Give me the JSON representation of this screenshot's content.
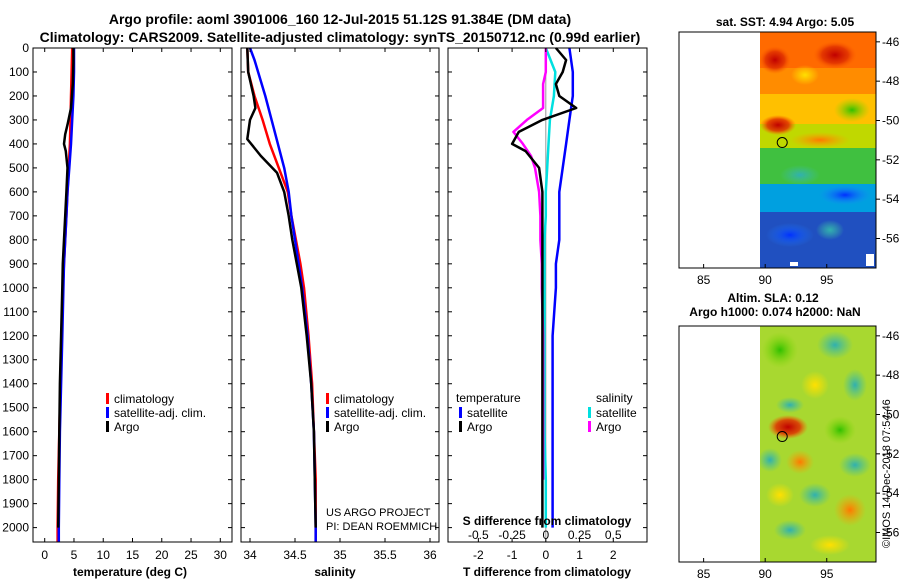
{
  "title": {
    "line1": "Argo profile: aoml 3901006_160 12-Jul-2015 51.12S 91.384E (DM data)",
    "line2": "Climatology: CARS2009. Satellite-adjusted climatology: synTS_20150712.nc (0.99d earlier)"
  },
  "colors": {
    "climatology": "#ff0000",
    "satellite": "#0000ff",
    "argo": "#000000",
    "satellite_salinity": "#00e0e0",
    "argo_salinity": "#ff00ff"
  },
  "depth_ticks": [
    "0",
    "100",
    "200",
    "300",
    "400",
    "500",
    "600",
    "700",
    "800",
    "900",
    "1000",
    "1100",
    "1200",
    "1300",
    "1400",
    "1500",
    "1600",
    "1700",
    "1800",
    "1900",
    "2000"
  ],
  "credits": {
    "project": "US ARGO PROJECT",
    "pi": "PI: DEAN ROEMMICH",
    "imos": "©IMOS 14-Dec-2018 07:54:46"
  },
  "chart_data": [
    {
      "type": "line",
      "xlabel": "temperature (deg C)",
      "ylabel": "depth",
      "xlim": [
        -2,
        32
      ],
      "ylim": [
        2060,
        0
      ],
      "xticks": [
        0,
        5,
        10,
        15,
        20,
        25,
        30
      ],
      "legend": [
        "climatology",
        "satellite-adj. clim.",
        "Argo"
      ],
      "series": [
        {
          "name": "climatology",
          "depth": [
            0,
            100,
            200,
            300,
            400,
            500,
            600,
            700,
            800,
            900,
            1000,
            1200,
            1400,
            1600,
            1800,
            2000,
            2060
          ],
          "values": [
            4.7,
            4.6,
            4.5,
            4.4,
            4.3,
            4.1,
            3.9,
            3.7,
            3.5,
            3.3,
            3.1,
            2.9,
            2.7,
            2.5,
            2.3,
            2.2,
            2.2
          ]
        },
        {
          "name": "satellite-adj. clim.",
          "depth": [
            0,
            100,
            200,
            300,
            400,
            500,
            600,
            700,
            800,
            900,
            1000,
            1200,
            1400,
            1600,
            1800,
            2000,
            2060
          ],
          "values": [
            5.0,
            5.0,
            4.9,
            4.7,
            4.5,
            4.2,
            3.9,
            3.7,
            3.5,
            3.3,
            3.2,
            3.0,
            2.8,
            2.6,
            2.5,
            2.4,
            2.4
          ]
        },
        {
          "name": "Argo",
          "depth": [
            0,
            60,
            150,
            250,
            320,
            360,
            400,
            430,
            500,
            600,
            700,
            800,
            900,
            1000,
            1200,
            1400,
            1600,
            1800,
            2000
          ],
          "values": [
            4.9,
            4.9,
            4.8,
            4.5,
            3.9,
            3.5,
            3.3,
            3.6,
            3.9,
            3.7,
            3.5,
            3.3,
            3.1,
            3.0,
            2.8,
            2.6,
            2.5,
            2.4,
            2.3
          ]
        }
      ]
    },
    {
      "type": "line",
      "xlabel": "salinity",
      "ylabel": "depth",
      "xlim": [
        33.9,
        36.1
      ],
      "ylim": [
        2060,
        0
      ],
      "xticks": [
        34,
        34.5,
        35,
        35.5,
        36
      ],
      "legend": [
        "climatology",
        "satellite-adj. clim.",
        "Argo"
      ],
      "series": [
        {
          "name": "climatology",
          "depth": [
            0,
            100,
            200,
            300,
            400,
            500,
            600,
            700,
            800,
            900,
            1000,
            1200,
            1400,
            1600,
            1800,
            2000,
            2060
          ],
          "values": [
            33.97,
            33.98,
            34.05,
            34.14,
            34.22,
            34.32,
            34.42,
            34.46,
            34.51,
            34.56,
            34.6,
            34.65,
            34.69,
            34.71,
            34.73,
            34.73,
            34.73
          ]
        },
        {
          "name": "satellite-adj. clim.",
          "depth": [
            0,
            50,
            100,
            200,
            300,
            400,
            500,
            600,
            700,
            800,
            900,
            1000,
            1200,
            1400,
            1600,
            1800,
            2000,
            2060
          ],
          "values": [
            34.0,
            34.05,
            34.09,
            34.17,
            34.24,
            34.31,
            34.38,
            34.43,
            34.46,
            34.5,
            34.54,
            34.58,
            34.64,
            34.68,
            34.71,
            34.72,
            34.73,
            34.73
          ]
        },
        {
          "name": "Argo",
          "depth": [
            0,
            100,
            200,
            250,
            300,
            380,
            450,
            520,
            600,
            700,
            800,
            900,
            1000,
            1200,
            1400,
            1600,
            1800,
            2000
          ],
          "values": [
            33.97,
            33.98,
            34.04,
            34.06,
            34.0,
            33.97,
            34.12,
            34.3,
            34.38,
            34.43,
            34.47,
            34.52,
            34.57,
            34.63,
            34.68,
            34.71,
            34.72,
            34.73
          ]
        }
      ]
    },
    {
      "type": "line",
      "xlabel": "T difference from climatology",
      "top_axis_label": "S difference from climatology",
      "ylabel": "depth",
      "xlim": [
        -2.9,
        3.0
      ],
      "ylim": [
        2060,
        0
      ],
      "xticks": [
        -2,
        -1,
        0,
        1,
        2
      ],
      "top_xlim": [
        -0.725,
        0.75
      ],
      "top_xticks": [
        -0.5,
        -0.25,
        0,
        0.25,
        0.5
      ],
      "top_xtick_labels": [
        "-0.5",
        "-0.25",
        "0",
        "0.25",
        "0.5"
      ],
      "legend_temperature_title": "temperature",
      "legend_salinity_title": "salinity",
      "legend": [
        "satellite",
        "Argo",
        "satellite",
        "Argo"
      ],
      "series": [
        {
          "name": "temperature satellite",
          "axis": "T",
          "depth": [
            0,
            100,
            200,
            300,
            400,
            500,
            600,
            700,
            800,
            900,
            1000,
            1200,
            1400,
            1600,
            1800,
            2000
          ],
          "values": [
            0.7,
            0.8,
            0.8,
            0.7,
            0.6,
            0.5,
            0.4,
            0.4,
            0.4,
            0.3,
            0.3,
            0.2,
            0.2,
            0.2,
            0.2,
            0.2
          ]
        },
        {
          "name": "temperature Argo",
          "axis": "T",
          "depth": [
            0,
            50,
            100,
            150,
            200,
            250,
            300,
            350,
            400,
            430,
            500,
            600,
            700,
            800,
            900,
            1000,
            1200,
            1400,
            1600,
            1800,
            2000
          ],
          "values": [
            0.3,
            0.6,
            0.5,
            0.3,
            0.4,
            0.9,
            -0.1,
            -0.8,
            -1.0,
            -0.6,
            -0.2,
            -0.1,
            -0.1,
            -0.1,
            -0.1,
            -0.1,
            -0.1,
            -0.1,
            -0.1,
            -0.1,
            -0.1
          ]
        },
        {
          "name": "salinity satellite",
          "axis": "S",
          "depth": [
            0,
            100,
            200,
            300,
            400,
            500,
            600,
            700,
            800,
            900,
            1000,
            1200,
            1400,
            1600,
            1800,
            2000
          ],
          "values": [
            0.0,
            0.07,
            0.06,
            0.03,
            0.02,
            0.01,
            0.0,
            0.0,
            -0.01,
            -0.01,
            -0.01,
            -0.01,
            -0.01,
            -0.01,
            0.0,
            0.0
          ]
        },
        {
          "name": "salinity Argo",
          "axis": "S",
          "depth": [
            0,
            100,
            150,
            200,
            250,
            300,
            350,
            400,
            450,
            500,
            600,
            700,
            800,
            900,
            1000,
            1200,
            1400,
            1600,
            1800
          ],
          "values": [
            0.0,
            0.0,
            -0.02,
            -0.02,
            -0.02,
            -0.14,
            -0.24,
            -0.17,
            -0.11,
            -0.08,
            -0.05,
            -0.04,
            -0.04,
            -0.03,
            -0.03,
            -0.02,
            -0.02,
            -0.02,
            -0.02
          ]
        }
      ]
    },
    {
      "type": "heatmap",
      "title": "sat. SST: 4.94 Argo: 5.05",
      "xlim": [
        83,
        99
      ],
      "ylim": [
        -57.5,
        -45.5
      ],
      "xticks": [
        85,
        90,
        95
      ],
      "yticks": [
        -46,
        -48,
        -50,
        -52,
        -54,
        -56
      ],
      "marker": {
        "lon": 91.384,
        "lat": -51.12
      }
    },
    {
      "type": "heatmap",
      "title": "Altim. SLA: 0.12",
      "subtitle": "Argo h1000: 0.074 h2000: NaN",
      "xlim": [
        83,
        99
      ],
      "ylim": [
        -57.5,
        -45.5
      ],
      "xticks": [
        85,
        90,
        95
      ],
      "yticks": [
        -46,
        -48,
        -50,
        -52,
        -54,
        -56
      ],
      "marker": {
        "lon": 91.384,
        "lat": -51.12
      }
    }
  ]
}
